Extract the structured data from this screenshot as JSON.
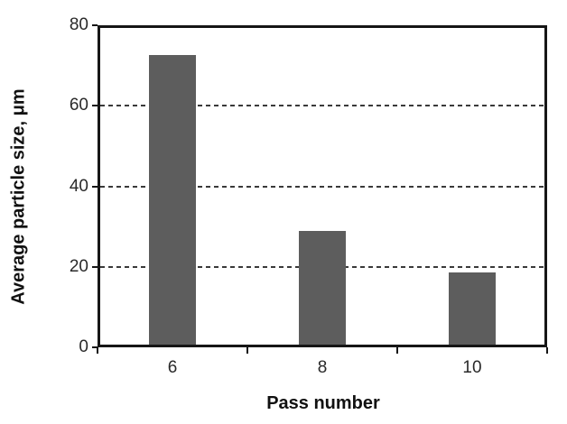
{
  "chart_data": {
    "type": "bar",
    "title": "",
    "categories": [
      "6",
      "8",
      "10"
    ],
    "values": [
      72.5,
      28.8,
      18.6
    ],
    "xlabel": "Pass number",
    "ylabel": "Average particle size, μm",
    "ylim": [
      0,
      80
    ],
    "yticks": [
      0,
      20,
      40,
      60,
      80
    ],
    "gridline_values": [
      20,
      40,
      60
    ],
    "grid_style": "dashed",
    "legend_position": "none"
  },
  "colors": {
    "bar_fill": "#5d5d5d",
    "frame": "#161616",
    "gridline": "#3a3a3a",
    "tick_label_text": "#2a2a2a",
    "axis_title_text": "#111111",
    "background": "#ffffff"
  }
}
